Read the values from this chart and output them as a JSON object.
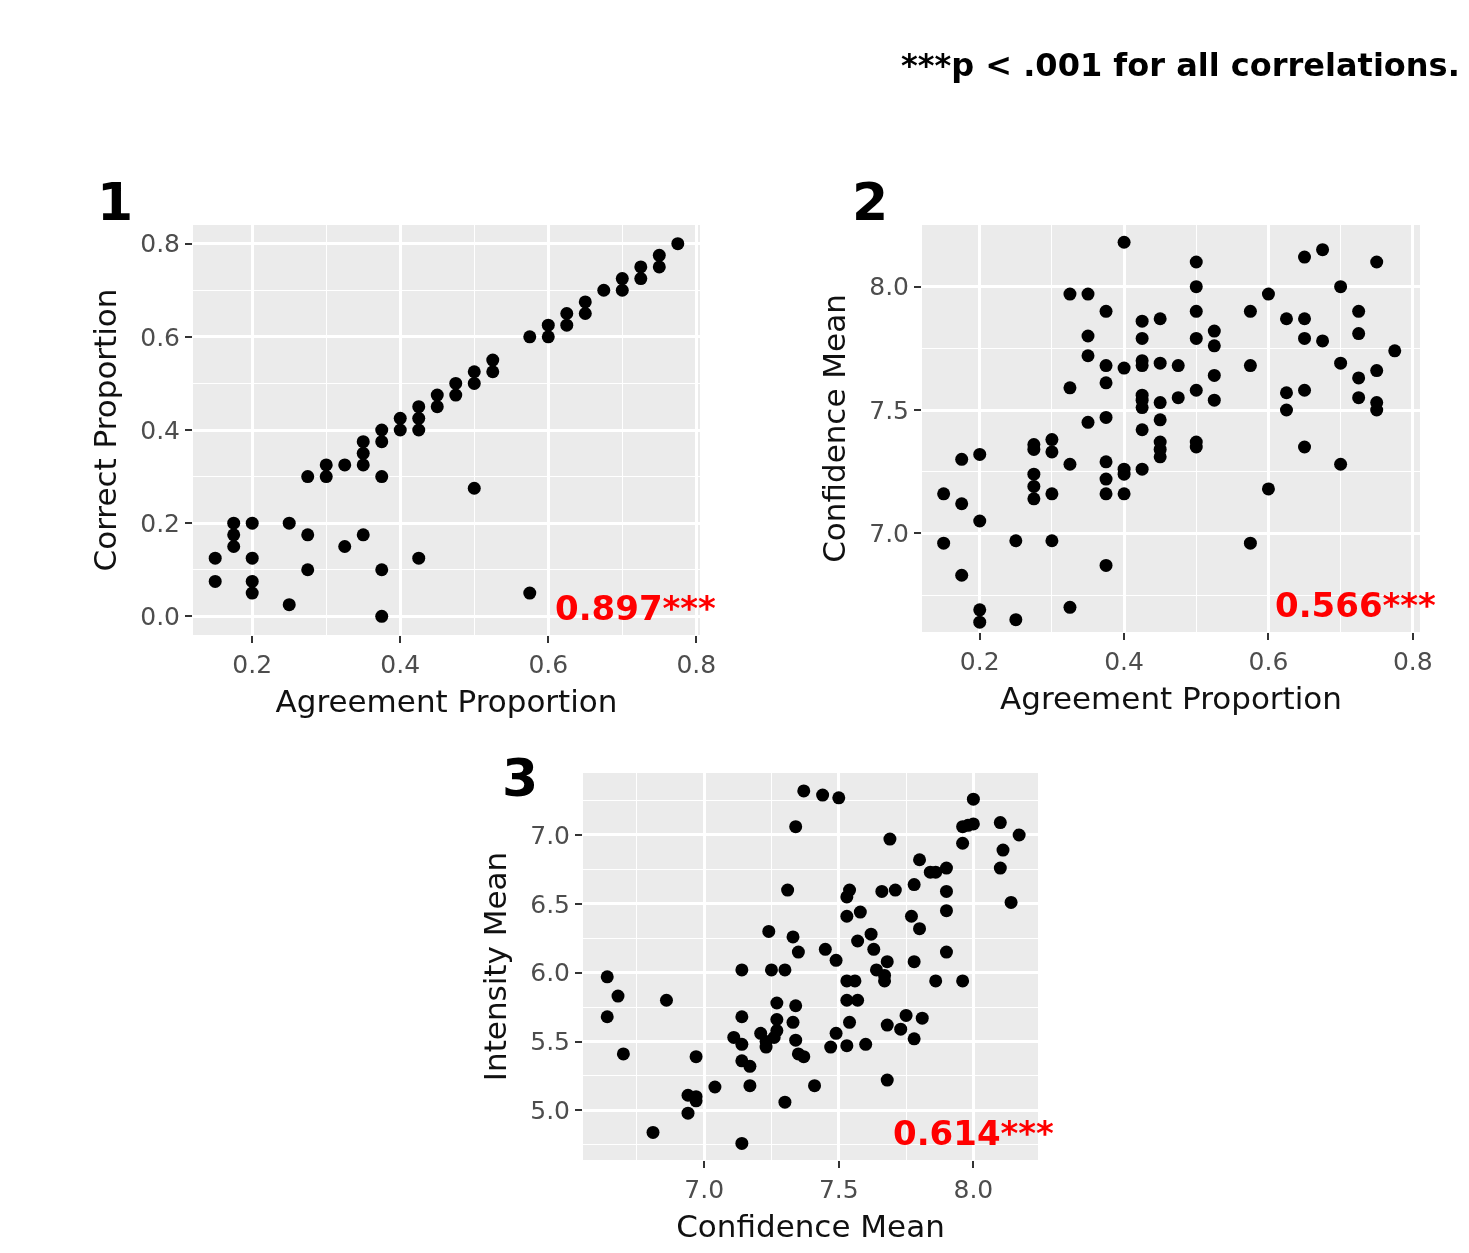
{
  "chart_data": [
    {
      "type": "scatter",
      "title": "1",
      "xlabel": "Agreement Proportion",
      "ylabel": "Correct Proportion",
      "xlim": [
        0.12,
        0.805
      ],
      "ylim": [
        -0.04,
        0.84
      ],
      "xticks": [
        0.2,
        0.4,
        0.6,
        0.8
      ],
      "yticks": [
        {
          "value": 0,
          "label": "0.0"
        },
        0.2,
        0.4,
        0.6,
        0.8
      ],
      "grid": true,
      "marker": "circle",
      "annotations": [
        "0.897***"
      ],
      "series": [
        {
          "color": "#000000",
          "x": [
            0.775,
            0.75,
            0.75,
            0.725,
            0.725,
            0.7,
            0.7,
            0.675,
            0.65,
            0.65,
            0.625,
            0.625,
            0.6,
            0.6,
            0.575,
            0.525,
            0.525,
            0.5,
            0.5,
            0.475,
            0.475,
            0.45,
            0.45,
            0.425,
            0.425,
            0.425,
            0.4,
            0.4,
            0.375,
            0.375,
            0.35,
            0.35,
            0.35,
            0.325,
            0.3,
            0.3,
            0.275,
            0.375,
            0.5,
            0.175,
            0.175,
            0.175,
            0.2,
            0.25,
            0.275,
            0.325,
            0.35,
            0.15,
            0.15,
            0.2,
            0.2,
            0.2,
            0.275,
            0.375,
            0.425,
            0.25,
            0.375,
            0.575
          ],
          "values": [
            0.8,
            0.775,
            0.75,
            0.75,
            0.725,
            0.725,
            0.7,
            0.7,
            0.675,
            0.65,
            0.65,
            0.625,
            0.625,
            0.6,
            0.6,
            0.55,
            0.525,
            0.525,
            0.5,
            0.5,
            0.475,
            0.475,
            0.45,
            0.45,
            0.425,
            0.4,
            0.425,
            0.4,
            0.4,
            0.375,
            0.375,
            0.35,
            0.325,
            0.325,
            0.325,
            0.3,
            0.3,
            0.3,
            0.275,
            0.2,
            0.175,
            0.15,
            0.2,
            0.2,
            0.175,
            0.15,
            0.175,
            0.125,
            0.075,
            0.125,
            0.075,
            0.05,
            0.1,
            0.1,
            0.125,
            0.025,
            0.0,
            0.05
          ]
        }
      ]
    },
    {
      "type": "scatter",
      "title": "2",
      "xlabel": "Agreement Proportion",
      "ylabel": "Confidence Mean",
      "xlim": [
        0.12,
        0.81
      ],
      "ylim": [
        6.6,
        8.25
      ],
      "xticks": [
        0.2,
        0.4,
        0.6,
        0.8
      ],
      "yticks": [
        {
          "value": 7,
          "label": "7.0"
        },
        7.5,
        {
          "value": 8,
          "label": "8.0"
        }
      ],
      "grid": true,
      "marker": "circle",
      "annotations": [
        "0.566***",
        "***p < .001 for all correlations."
      ],
      "series": [
        {
          "color": "#000000",
          "x": [
            0.4,
            0.5,
            0.5,
            0.5,
            0.5,
            0.65,
            0.675,
            0.75,
            0.7,
            0.6,
            0.325,
            0.35,
            0.375,
            0.575,
            0.725,
            0.625,
            0.65,
            0.425,
            0.45,
            0.425,
            0.35,
            0.525,
            0.525,
            0.65,
            0.675,
            0.725,
            0.775,
            0.35,
            0.375,
            0.4,
            0.425,
            0.425,
            0.45,
            0.475,
            0.575,
            0.7,
            0.75,
            0.725,
            0.525,
            0.5,
            0.475,
            0.525,
            0.325,
            0.375,
            0.425,
            0.425,
            0.425,
            0.45,
            0.45,
            0.625,
            0.65,
            0.625,
            0.725,
            0.75,
            0.75,
            0.35,
            0.375,
            0.425,
            0.45,
            0.45,
            0.45,
            0.5,
            0.5,
            0.65,
            0.7,
            0.275,
            0.275,
            0.3,
            0.3,
            0.325,
            0.375,
            0.375,
            0.375,
            0.4,
            0.4,
            0.4,
            0.425,
            0.275,
            0.275,
            0.275,
            0.3,
            0.175,
            0.2,
            0.15,
            0.175,
            0.2,
            0.15,
            0.25,
            0.3,
            0.6,
            0.575,
            0.375,
            0.175,
            0.325,
            0.2,
            0.2,
            0.25
          ],
          "values": [
            8.18,
            8.1,
            8.0,
            7.9,
            7.79,
            8.12,
            8.15,
            8.1,
            8.0,
            7.97,
            7.97,
            7.97,
            7.9,
            7.9,
            7.9,
            7.87,
            7.87,
            7.86,
            7.87,
            7.79,
            7.8,
            7.82,
            7.76,
            7.79,
            7.78,
            7.81,
            7.74,
            7.72,
            7.68,
            7.67,
            7.7,
            7.68,
            7.69,
            7.68,
            7.68,
            7.69,
            7.66,
            7.63,
            7.64,
            7.58,
            7.55,
            7.54,
            7.59,
            7.61,
            7.56,
            7.54,
            7.51,
            7.53,
            7.46,
            7.57,
            7.58,
            7.5,
            7.55,
            7.53,
            7.5,
            7.45,
            7.47,
            7.42,
            7.37,
            7.34,
            7.31,
            7.37,
            7.35,
            7.35,
            7.28,
            7.36,
            7.34,
            7.38,
            7.33,
            7.28,
            7.29,
            7.22,
            7.16,
            7.26,
            7.24,
            7.16,
            7.26,
            7.24,
            7.19,
            7.14,
            7.16,
            7.3,
            7.32,
            7.16,
            7.12,
            7.05,
            6.96,
            6.97,
            6.97,
            7.18,
            6.96,
            6.87,
            6.83,
            6.7,
            6.69,
            6.64,
            6.65
          ]
        }
      ]
    },
    {
      "type": "scatter",
      "title": "3",
      "xlabel": "Confidence Mean",
      "ylabel": "Intensity Mean",
      "xlim": [
        6.55,
        8.24
      ],
      "ylim": [
        4.64,
        7.45
      ],
      "xticks": [
        {
          "value": 7,
          "label": "7.0"
        },
        7.5,
        {
          "value": 8,
          "label": "8.0"
        }
      ],
      "yticks": [
        {
          "value": 5,
          "label": "5.0"
        },
        5.5,
        {
          "value": 6,
          "label": "6.0"
        },
        6.5,
        {
          "value": 7,
          "label": "7.0"
        }
      ],
      "grid": true,
      "marker": "circle",
      "annotations": [
        "0.614***"
      ],
      "series": [
        {
          "color": "#000000",
          "x": [
            7.37,
            7.44,
            7.5,
            7.34,
            8.0,
            8.1,
            7.96,
            7.98,
            8.0,
            8.17,
            7.69,
            7.96,
            8.11,
            8.1,
            8.14,
            7.8,
            7.84,
            7.86,
            7.9,
            7.78,
            7.66,
            7.71,
            7.9,
            7.9,
            7.31,
            7.54,
            7.53,
            7.53,
            7.58,
            7.77,
            7.8,
            7.24,
            7.33,
            7.35,
            7.45,
            7.49,
            7.57,
            7.62,
            7.63,
            7.68,
            7.64,
            7.67,
            7.67,
            7.78,
            7.9,
            7.86,
            7.96,
            7.53,
            7.56,
            7.53,
            7.57,
            7.54,
            7.68,
            7.75,
            7.81,
            7.73,
            7.78,
            7.49,
            7.47,
            7.53,
            7.6,
            7.68,
            6.64,
            6.68,
            6.64,
            6.7,
            6.86,
            7.14,
            7.25,
            7.3,
            7.14,
            7.27,
            7.34,
            7.27,
            7.33,
            7.11,
            7.14,
            7.21,
            7.23,
            7.26,
            7.23,
            7.27,
            7.34,
            7.35,
            7.37,
            7.14,
            7.17,
            6.97,
            7.17,
            7.04,
            7.41,
            6.94,
            6.97,
            6.97,
            6.94,
            7.3,
            6.81,
            7.14
          ],
          "values": [
            7.32,
            7.29,
            7.27,
            7.06,
            7.26,
            7.09,
            7.06,
            7.07,
            7.08,
            7.0,
            6.97,
            6.94,
            6.89,
            6.76,
            6.51,
            6.82,
            6.73,
            6.73,
            6.76,
            6.64,
            6.59,
            6.6,
            6.59,
            6.45,
            6.6,
            6.6,
            6.55,
            6.41,
            6.44,
            6.41,
            6.32,
            6.3,
            6.26,
            6.15,
            6.17,
            6.09,
            6.23,
            6.28,
            6.17,
            6.08,
            6.02,
            5.98,
            5.94,
            6.08,
            6.15,
            5.94,
            5.94,
            5.94,
            5.94,
            5.8,
            5.8,
            5.64,
            5.62,
            5.69,
            5.67,
            5.59,
            5.52,
            5.56,
            5.46,
            5.47,
            5.48,
            5.22,
            5.97,
            5.83,
            5.68,
            5.41,
            5.8,
            6.02,
            6.02,
            6.02,
            5.68,
            5.78,
            5.76,
            5.66,
            5.64,
            5.53,
            5.48,
            5.56,
            5.5,
            5.53,
            5.46,
            5.58,
            5.51,
            5.41,
            5.39,
            5.36,
            5.32,
            5.39,
            5.18,
            5.17,
            5.18,
            5.11,
            5.1,
            5.07,
            4.98,
            5.06,
            4.84,
            4.76
          ]
        }
      ]
    }
  ]
}
